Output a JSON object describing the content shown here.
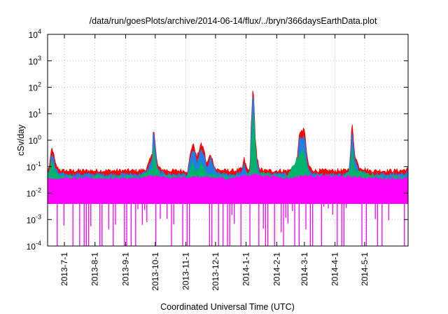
{
  "chart_data": {
    "type": "area",
    "title": "/data/run/goesPlots/archive/2014-06-14/flux/../bryn/366daysEarthData.plot",
    "xlabel": "Coordinated Universal Time (UTC)",
    "ylabel": "cSv/day",
    "yscale": "log",
    "ylim": [
      0.0001,
      10000
    ],
    "xlim": [
      "2013-06-14",
      "2014-06-14"
    ],
    "grid": true,
    "y_ticks": [
      {
        "value": 0.0001,
        "base": "10",
        "exp": "-4"
      },
      {
        "value": 0.001,
        "base": "10",
        "exp": "-3"
      },
      {
        "value": 0.01,
        "base": "10",
        "exp": "-2"
      },
      {
        "value": 0.1,
        "base": "10",
        "exp": "-1"
      },
      {
        "value": 1,
        "base": "10",
        "exp": "0"
      },
      {
        "value": 10,
        "base": "10",
        "exp": "1"
      },
      {
        "value": 100,
        "base": "10",
        "exp": "2"
      },
      {
        "value": 1000,
        "base": "10",
        "exp": "3"
      },
      {
        "value": 10000,
        "base": "10",
        "exp": "4"
      }
    ],
    "x_ticks": [
      {
        "date": "2013-07-01",
        "label": "2013-7-1"
      },
      {
        "date": "2013-08-01",
        "label": "2013-8-1"
      },
      {
        "date": "2013-09-01",
        "label": "2013-9-1"
      },
      {
        "date": "2013-10-01",
        "label": "2013-10-1"
      },
      {
        "date": "2013-11-01",
        "label": "2013-11-1"
      },
      {
        "date": "2013-12-01",
        "label": "2013-12-1"
      },
      {
        "date": "2014-01-01",
        "label": "2014-1-1"
      },
      {
        "date": "2014-02-01",
        "label": "2014-2-1"
      },
      {
        "date": "2014-03-01",
        "label": "2014-3-1"
      },
      {
        "date": "2014-04-01",
        "label": "2014-4-1"
      },
      {
        "date": "2014-05-01",
        "label": "2014-5-1"
      }
    ],
    "series": [
      {
        "color": "#ff0000",
        "x": [
          "2013-06-14",
          "2013-06-16",
          "2013-06-18",
          "2013-06-19",
          "2013-06-20",
          "2013-06-22",
          "2013-06-24",
          "2013-06-28",
          "2013-07-05",
          "2013-07-15",
          "2013-07-25",
          "2013-08-05",
          "2013-08-15",
          "2013-08-25",
          "2013-09-05",
          "2013-09-15",
          "2013-09-22",
          "2013-09-28",
          "2013-09-29",
          "2013-09-30",
          "2013-10-01",
          "2013-10-03",
          "2013-10-06",
          "2013-10-15",
          "2013-10-25",
          "2013-11-03",
          "2013-11-06",
          "2013-11-08",
          "2013-11-10",
          "2013-11-12",
          "2013-11-16",
          "2013-11-19",
          "2013-11-22",
          "2013-11-26",
          "2013-12-01",
          "2013-12-10",
          "2013-12-20",
          "2013-12-28",
          "2013-12-30",
          "2014-01-01",
          "2014-01-03",
          "2014-01-05",
          "2014-01-06",
          "2014-01-07",
          "2014-01-08",
          "2014-01-09",
          "2014-01-10",
          "2014-01-12",
          "2014-01-15",
          "2014-01-20",
          "2014-01-28",
          "2014-02-05",
          "2014-02-12",
          "2014-02-18",
          "2014-02-22",
          "2014-02-24",
          "2014-02-26",
          "2014-02-27",
          "2014-02-28",
          "2014-03-01",
          "2014-03-03",
          "2014-03-05",
          "2014-03-08",
          "2014-03-12",
          "2014-03-20",
          "2014-04-01",
          "2014-04-10",
          "2014-04-15",
          "2014-04-17",
          "2014-04-18",
          "2014-04-19",
          "2014-04-21",
          "2014-04-25",
          "2014-05-05",
          "2014-05-15",
          "2014-05-25",
          "2014-06-05",
          "2014-06-14"
        ],
        "y": [
          0.08,
          0.1,
          0.5,
          0.45,
          0.3,
          0.12,
          0.09,
          0.07,
          0.07,
          0.07,
          0.07,
          0.07,
          0.07,
          0.07,
          0.07,
          0.07,
          0.08,
          0.3,
          3,
          2,
          0.6,
          0.12,
          0.08,
          0.07,
          0.07,
          0.07,
          0.4,
          0.7,
          0.5,
          0.2,
          0.7,
          0.5,
          0.12,
          0.3,
          0.08,
          0.07,
          0.07,
          0.08,
          0.2,
          0.1,
          0.07,
          0.1,
          3,
          20,
          120,
          30,
          1.5,
          0.2,
          0.08,
          0.07,
          0.07,
          0.07,
          0.07,
          0.08,
          0.2,
          2,
          2.5,
          1.5,
          3,
          2.5,
          0.4,
          0.12,
          0.08,
          0.07,
          0.07,
          0.07,
          0.07,
          0.08,
          0.4,
          6,
          2,
          0.3,
          0.1,
          0.07,
          0.07,
          0.07,
          0.07,
          0.08
        ]
      },
      {
        "color": "#1e7fe6",
        "x": [
          "2013-06-14",
          "2013-06-16",
          "2013-06-18",
          "2013-06-19",
          "2013-06-20",
          "2013-06-22",
          "2013-06-24",
          "2013-06-28",
          "2013-07-05",
          "2013-07-15",
          "2013-07-25",
          "2013-08-05",
          "2013-08-15",
          "2013-08-25",
          "2013-09-05",
          "2013-09-15",
          "2013-09-22",
          "2013-09-28",
          "2013-09-29",
          "2013-09-30",
          "2013-10-01",
          "2013-10-03",
          "2013-10-06",
          "2013-10-15",
          "2013-10-25",
          "2013-11-03",
          "2013-11-06",
          "2013-11-08",
          "2013-11-10",
          "2013-11-12",
          "2013-11-16",
          "2013-11-19",
          "2013-11-22",
          "2013-11-26",
          "2013-12-01",
          "2013-12-10",
          "2013-12-20",
          "2013-12-28",
          "2013-12-30",
          "2014-01-01",
          "2014-01-03",
          "2014-01-05",
          "2014-01-06",
          "2014-01-07",
          "2014-01-08",
          "2014-01-09",
          "2014-01-10",
          "2014-01-12",
          "2014-01-15",
          "2014-01-20",
          "2014-01-28",
          "2014-02-05",
          "2014-02-12",
          "2014-02-18",
          "2014-02-22",
          "2014-02-24",
          "2014-02-26",
          "2014-02-27",
          "2014-02-28",
          "2014-03-01",
          "2014-03-03",
          "2014-03-05",
          "2014-03-08",
          "2014-03-12",
          "2014-03-20",
          "2014-04-01",
          "2014-04-10",
          "2014-04-15",
          "2014-04-17",
          "2014-04-18",
          "2014-04-19",
          "2014-04-21",
          "2014-04-25",
          "2014-05-05",
          "2014-05-15",
          "2014-05-25",
          "2014-06-05",
          "2014-06-14"
        ],
        "y": [
          0.055,
          0.07,
          0.3,
          0.28,
          0.18,
          0.08,
          0.06,
          0.05,
          0.05,
          0.05,
          0.05,
          0.05,
          0.05,
          0.05,
          0.05,
          0.05,
          0.06,
          0.2,
          2,
          1.2,
          0.4,
          0.08,
          0.06,
          0.05,
          0.05,
          0.05,
          0.25,
          0.4,
          0.3,
          0.12,
          0.4,
          0.3,
          0.08,
          0.2,
          0.06,
          0.05,
          0.05,
          0.06,
          0.12,
          0.07,
          0.05,
          0.07,
          1.5,
          10,
          70,
          15,
          0.8,
          0.12,
          0.06,
          0.05,
          0.05,
          0.05,
          0.05,
          0.06,
          0.12,
          1.2,
          1.5,
          0.9,
          1.6,
          1.2,
          0.25,
          0.08,
          0.06,
          0.05,
          0.05,
          0.05,
          0.05,
          0.06,
          0.25,
          3,
          1.2,
          0.2,
          0.07,
          0.05,
          0.05,
          0.05,
          0.05,
          0.06
        ]
      },
      {
        "color": "#00b36b",
        "x": [
          "2013-06-14",
          "2013-06-18",
          "2013-06-20",
          "2013-06-24",
          "2013-07-15",
          "2013-08-15",
          "2013-09-15",
          "2013-09-28",
          "2013-09-29",
          "2013-10-01",
          "2013-10-06",
          "2013-11-03",
          "2013-11-08",
          "2013-11-12",
          "2013-11-16",
          "2013-11-22",
          "2013-12-20",
          "2014-01-05",
          "2014-01-07",
          "2014-01-08",
          "2014-01-09",
          "2014-01-12",
          "2014-02-12",
          "2014-02-24",
          "2014-02-28",
          "2014-03-01",
          "2014-03-05",
          "2014-04-10",
          "2014-04-17",
          "2014-04-18",
          "2014-04-21",
          "2014-05-15",
          "2014-06-14"
        ],
        "y": [
          0.04,
          0.15,
          0.1,
          0.045,
          0.04,
          0.04,
          0.04,
          0.08,
          0.6,
          0.15,
          0.045,
          0.04,
          0.15,
          0.06,
          0.15,
          0.05,
          0.04,
          0.05,
          2,
          15,
          4,
          0.06,
          0.04,
          0.3,
          0.4,
          0.3,
          0.05,
          0.04,
          0.08,
          0.6,
          0.07,
          0.04,
          0.04
        ]
      },
      {
        "color": "#ff00ff",
        "x": [
          "2013-06-14",
          "2013-07-15",
          "2013-08-15",
          "2013-09-15",
          "2013-09-29",
          "2013-10-15",
          "2013-11-08",
          "2013-12-15",
          "2014-01-08",
          "2014-02-15",
          "2014-02-28",
          "2014-04-18",
          "2014-05-15",
          "2014-06-14"
        ],
        "y": [
          0.035,
          0.035,
          0.035,
          0.035,
          0.045,
          0.035,
          0.04,
          0.035,
          0.05,
          0.035,
          0.045,
          0.04,
          0.035,
          0.035
        ]
      }
    ]
  }
}
